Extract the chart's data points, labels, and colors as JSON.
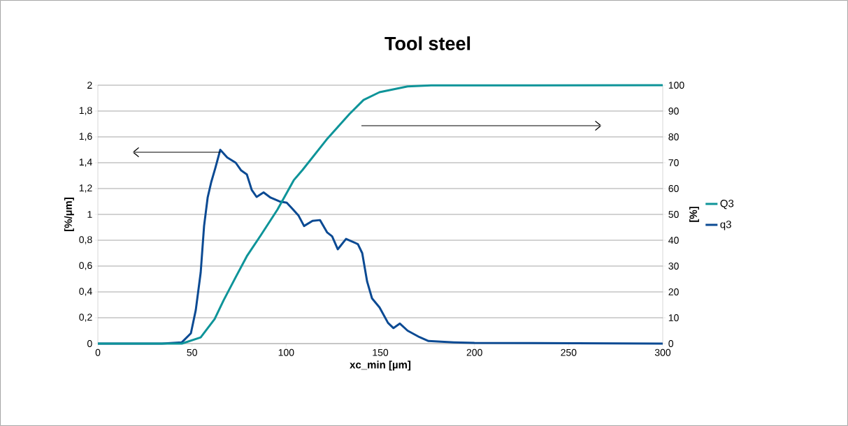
{
  "chart_data": {
    "type": "line",
    "title": "Tool steel",
    "xlabel": "xc_min [µm]",
    "ylabel": "[%/µm]",
    "y2label": "[%]",
    "xlim": [
      0,
      300
    ],
    "xticks": [
      0,
      50,
      100,
      150,
      200,
      250,
      300
    ],
    "ylim": [
      0,
      2
    ],
    "yticks": [
      0,
      {
        "value": 0.2,
        "label": "0,2"
      },
      {
        "value": 0.4,
        "label": "0,4"
      },
      {
        "value": 0.6,
        "label": "0,6"
      },
      {
        "value": 0.8,
        "label": "0,8"
      },
      1,
      {
        "value": 1.2,
        "label": "1,2"
      },
      {
        "value": 1.4,
        "label": "1,4"
      },
      {
        "value": 1.6,
        "label": "1,6"
      },
      {
        "value": 1.8,
        "label": "1,8"
      },
      2
    ],
    "y2lim": [
      0,
      100
    ],
    "y2ticks": [
      0,
      10,
      20,
      30,
      40,
      50,
      60,
      70,
      80,
      90,
      100
    ],
    "grid": "y",
    "legend": "right",
    "marker": "none",
    "line_style": "solid",
    "series": [
      {
        "name": "Q3",
        "color": "#0e9499",
        "axis": "y2",
        "x": [
          0,
          44.6,
          54.6,
          62,
          66.8,
          73.2,
          79.1,
          86.5,
          95.4,
          104,
          108.8,
          121.4,
          133.7,
          141.1,
          149.6,
          164.5,
          177,
          300
        ],
        "values": [
          0,
          0,
          2.4,
          9.5,
          16.8,
          25.7,
          33.8,
          41.9,
          51.9,
          63.2,
          67.3,
          78.9,
          88.9,
          94.3,
          97.3,
          99.5,
          99.9,
          100
        ]
      },
      {
        "name": "q3",
        "color": "#0b4a93",
        "x": [
          0,
          34,
          44.6,
          49.4,
          52,
          54.6,
          56.4,
          58.3,
          60.2,
          62.4,
          65,
          68.7,
          73.2,
          76.1,
          79.1,
          81.7,
          84.3,
          88,
          91.7,
          96.5,
          100.3,
          102.9,
          106.6,
          109.5,
          114,
          118,
          121.8,
          124.4,
          127.4,
          131.8,
          138.1,
          140.4,
          143,
          145.6,
          149.6,
          154.1,
          157,
          160.4,
          164.5,
          170.8,
          175.6,
          189,
          200,
          300
        ],
        "values": [
          0,
          0,
          0.01,
          0.08,
          0.26,
          0.55,
          0.91,
          1.13,
          1.25,
          1.36,
          1.5,
          1.44,
          1.4,
          1.34,
          1.31,
          1.19,
          1.135,
          1.17,
          1.13,
          1.1,
          1.09,
          1.05,
          0.99,
          0.91,
          0.95,
          0.956,
          0.86,
          0.83,
          0.73,
          0.81,
          0.77,
          0.7,
          0.48,
          0.35,
          0.28,
          0.16,
          0.12,
          0.155,
          0.1,
          0.05,
          0.02,
          0.01,
          0.005,
          0
        ]
      }
    ]
  }
}
